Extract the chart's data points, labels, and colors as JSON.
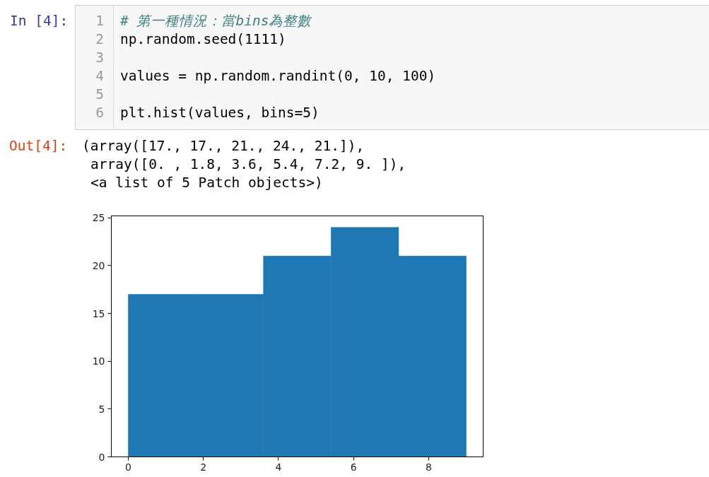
{
  "chart_data": {
    "type": "histogram",
    "bins": [
      0,
      1.8,
      3.6,
      5.4,
      7.2,
      9
    ],
    "values": [
      17,
      17,
      21,
      24,
      21
    ],
    "color": "#1f77b4",
    "xlim": [
      -0.45,
      9.45
    ],
    "ylim": [
      0,
      25.2
    ],
    "xticks": [
      0,
      2,
      4,
      6,
      8
    ],
    "yticks": [
      0,
      5,
      10,
      15,
      20,
      25
    ],
    "annotations": [
      "In [4]:",
      "1",
      "2",
      "3",
      "4",
      "5",
      "6",
      "# 第一種情況：當bins為整數",
      "np.random.seed(1111)",
      "values = np.random.randint(0, 10, 100)",
      "plt.hist(values, bins=5)",
      "Out[4]:",
      "(array([17., 17., 21., 24., 21.]),",
      "array([0. , 1.8, 3.6, 5.4, 7.2, 9. ]),",
      "<a list of 5 Patch objects>)"
    ]
  }
}
